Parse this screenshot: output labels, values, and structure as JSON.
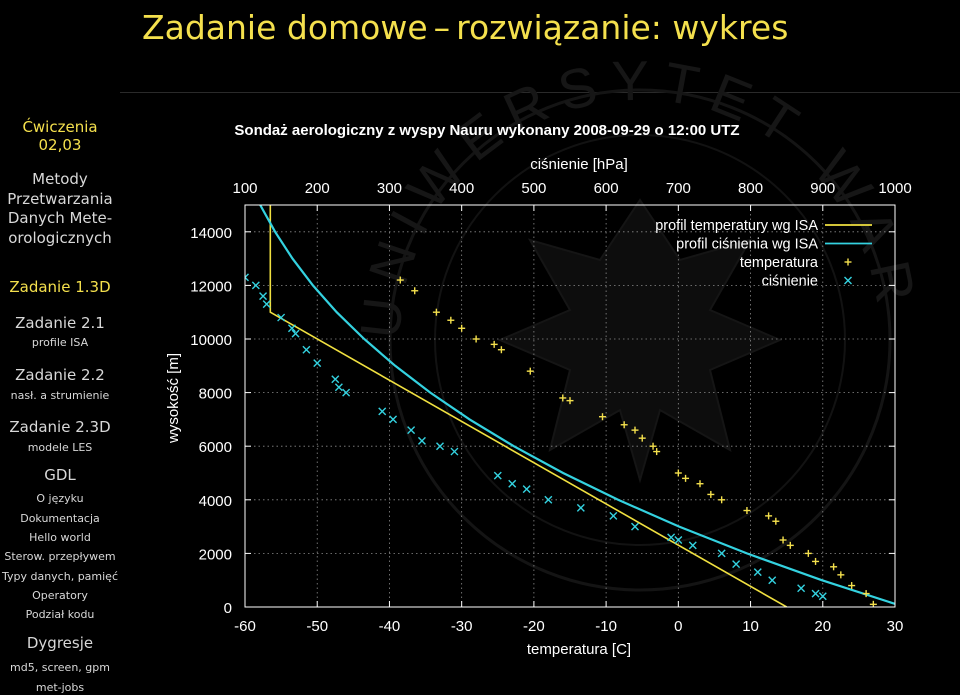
{
  "slide": {
    "title_part1": "Zadanie domowe",
    "title_dash": "–",
    "title_part2": "rozwiązanie: wykres"
  },
  "sidebar": {
    "current_section": {
      "line1": "Ćwiczenia",
      "line2": "02,03"
    },
    "course": {
      "line1": "Metody",
      "line2": "Przetwarzania",
      "line3": "Danych Mete-",
      "line4": "orologicznych"
    },
    "items": [
      {
        "label": "Zadanie 1.3D",
        "kind": "section",
        "active": true
      },
      {
        "label": "Zadanie 2.1",
        "kind": "section2"
      },
      {
        "label": "profile ISA",
        "kind": "sub"
      },
      {
        "label": "Zadanie 2.2",
        "kind": "section2"
      },
      {
        "label": "nasł. a strumienie",
        "kind": "sub"
      },
      {
        "label": "Zadanie 2.3D",
        "kind": "section2"
      },
      {
        "label": "modele LES",
        "kind": "sub"
      },
      {
        "label": "GDL",
        "kind": "section2"
      },
      {
        "label": "O języku",
        "kind": "sub"
      },
      {
        "label": "Dokumentacja",
        "kind": "sub"
      },
      {
        "label": "Hello world",
        "kind": "sub"
      },
      {
        "label": "Sterow. przepływem",
        "kind": "sub"
      },
      {
        "label": "Typy danych, pamięć",
        "kind": "sub"
      },
      {
        "label": "Operatory",
        "kind": "sub"
      },
      {
        "label": "Podział kodu",
        "kind": "sub"
      },
      {
        "label": "Dygresje",
        "kind": "section2"
      },
      {
        "label": "md5, screen, gpm",
        "kind": "sub"
      },
      {
        "label": "met-jobs",
        "kind": "sub"
      }
    ]
  },
  "watermark": {
    "text": "UNIWERSYTET WARSZAWSKI"
  },
  "colors": {
    "title": "#f4e04d",
    "temp_isa": "#f0e040",
    "press_isa": "#34d2e0",
    "temp_obs": "#f4e04d",
    "press_obs": "#34d2e0"
  },
  "chart_data": {
    "type": "line",
    "title": "Sondaż aerologiczny z wyspy Nauru wykonany 2008-09-29 o 12:00 UTZ",
    "xlabel": "temperatura [C]",
    "x2label": "ciśnienie [hPa]",
    "ylabel": "wysokość [m]",
    "xlim": [
      -60,
      30
    ],
    "x2lim": [
      100,
      1000
    ],
    "ylim": [
      0,
      15000
    ],
    "xticks": [
      -60,
      -50,
      -40,
      -30,
      -20,
      -10,
      0,
      10,
      20,
      30
    ],
    "x2ticks": [
      100,
      200,
      300,
      400,
      500,
      600,
      700,
      800,
      900,
      1000
    ],
    "yticks": [
      0,
      2000,
      4000,
      6000,
      8000,
      10000,
      12000,
      14000
    ],
    "grid": true,
    "legend_position": "top-right",
    "series": [
      {
        "name": "profil temperatury wg ISA",
        "axis": "temperatura",
        "style": "line",
        "points": [
          [
            15,
            0
          ],
          [
            -56.5,
            11000
          ],
          [
            -56.5,
            15000
          ]
        ]
      },
      {
        "name": "profil ciśnienia wg ISA",
        "axis": "ciśnienie",
        "style": "line",
        "points": [
          [
            1013.25,
            0
          ],
          [
            898.7,
            1000
          ],
          [
            795.0,
            2000
          ],
          [
            701.2,
            3000
          ],
          [
            616.6,
            4000
          ],
          [
            540.5,
            5000
          ],
          [
            472.2,
            6000
          ],
          [
            411.0,
            7000
          ],
          [
            356.5,
            8000
          ],
          [
            308.0,
            9000
          ],
          [
            265.0,
            10000
          ],
          [
            227.0,
            11000
          ],
          [
            194.0,
            12000
          ],
          [
            165.8,
            13000
          ],
          [
            141.7,
            14000
          ],
          [
            121.1,
            15000
          ]
        ]
      },
      {
        "name": "temperatura",
        "axis": "temperatura",
        "style": "plus",
        "points": [
          [
            27,
            100
          ],
          [
            26,
            500
          ],
          [
            24,
            800
          ],
          [
            22.5,
            1200
          ],
          [
            21.5,
            1500
          ],
          [
            19,
            1700
          ],
          [
            18,
            2000
          ],
          [
            15.5,
            2300
          ],
          [
            14.5,
            2500
          ],
          [
            13.5,
            3200
          ],
          [
            12.5,
            3400
          ],
          [
            9.5,
            3600
          ],
          [
            6,
            4000
          ],
          [
            4.5,
            4200
          ],
          [
            3,
            4600
          ],
          [
            1,
            4800
          ],
          [
            0,
            5000
          ],
          [
            -3,
            5800
          ],
          [
            -3.5,
            6000
          ],
          [
            -5,
            6300
          ],
          [
            -6,
            6600
          ],
          [
            -7.5,
            6800
          ],
          [
            -10.5,
            7100
          ],
          [
            -15,
            7700
          ],
          [
            -16,
            7800
          ],
          [
            -20.5,
            8800
          ],
          [
            -24.5,
            9600
          ],
          [
            -25.5,
            9800
          ],
          [
            -28,
            10000
          ],
          [
            -30,
            10400
          ],
          [
            -31.5,
            10700
          ],
          [
            -33.5,
            11000
          ],
          [
            -36.5,
            11800
          ],
          [
            -38.5,
            12200
          ]
        ]
      },
      {
        "name": "ciśnienie",
        "axis": "ciśnienie",
        "style": "cross",
        "points": [
          [
            1008,
            100
          ],
          [
            900,
            400
          ],
          [
            890,
            500
          ],
          [
            870,
            700
          ],
          [
            830,
            1000
          ],
          [
            810,
            1300
          ],
          [
            780,
            1600
          ],
          [
            760,
            2000
          ],
          [
            720,
            2300
          ],
          [
            700,
            2500
          ],
          [
            690,
            2600
          ],
          [
            640,
            3000
          ],
          [
            610,
            3400
          ],
          [
            565,
            3700
          ],
          [
            520,
            4000
          ],
          [
            490,
            4400
          ],
          [
            470,
            4600
          ],
          [
            450,
            4900
          ],
          [
            390,
            5800
          ],
          [
            370,
            6000
          ],
          [
            345,
            6200
          ],
          [
            330,
            6600
          ],
          [
            305,
            7000
          ],
          [
            290,
            7300
          ],
          [
            240,
            8000
          ],
          [
            230,
            8200
          ],
          [
            225,
            8500
          ],
          [
            200,
            9100
          ],
          [
            185,
            9600
          ],
          [
            170,
            10200
          ],
          [
            165,
            10400
          ],
          [
            150,
            10800
          ],
          [
            130,
            11300
          ],
          [
            125,
            11600
          ],
          [
            115,
            12000
          ],
          [
            100,
            12300
          ]
        ]
      }
    ]
  }
}
